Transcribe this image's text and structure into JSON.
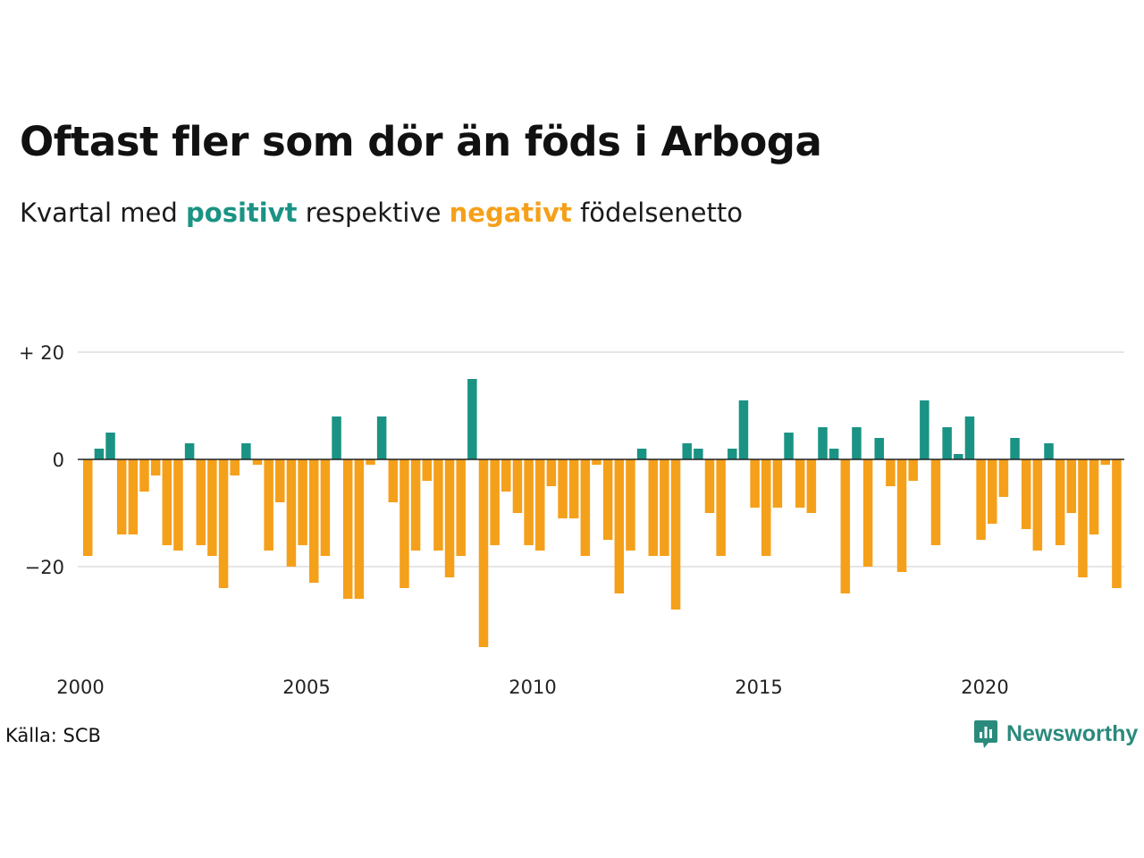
{
  "title": "Oftast fler som dör än föds i Arboga",
  "subtitle": {
    "before": "Kvartal med ",
    "positive_word": "positivt",
    "middle": " respektive ",
    "negative_word": "negativt",
    "after": " födelsenetto"
  },
  "source": "Källa: SCB",
  "brand": "Newsworthy",
  "colors": {
    "positive": "#1a9384",
    "negative": "#f5a01a",
    "grid": "#dddddd",
    "zero_line": "#222222"
  },
  "chart_data": {
    "type": "bar",
    "x_start": "2000 Q1",
    "x_ticks": [
      "2000",
      "2005",
      "2010",
      "2015",
      "2020"
    ],
    "y_ticks": [
      {
        "value": 20,
        "label": "+ 20"
      },
      {
        "value": 0,
        "label": "0"
      },
      {
        "value": -20,
        "label": "−20"
      }
    ],
    "ylim": [
      -37,
      20
    ],
    "grid": true,
    "values": [
      -18,
      2,
      5,
      -14,
      -14,
      -6,
      -3,
      -16,
      -17,
      3,
      -16,
      -18,
      -24,
      -3,
      3,
      -1,
      -17,
      -8,
      -20,
      -16,
      -23,
      -18,
      8,
      -26,
      -26,
      -1,
      8,
      -8,
      -24,
      -17,
      -4,
      -17,
      -22,
      -18,
      15,
      -35,
      -16,
      -6,
      -10,
      -16,
      -17,
      -5,
      -11,
      -11,
      -18,
      -1,
      -15,
      -25,
      -17,
      2,
      -18,
      -18,
      -28,
      3,
      2,
      -10,
      -18,
      2,
      11,
      -9,
      -18,
      -9,
      5,
      -9,
      -10,
      6,
      2,
      -25,
      6,
      -20,
      4,
      -5,
      -21,
      -4,
      11,
      -16,
      6,
      1,
      8,
      -15,
      -12,
      -7,
      4,
      -13,
      -17,
      3,
      -16,
      -10,
      -22,
      -14,
      -1,
      -24
    ]
  }
}
